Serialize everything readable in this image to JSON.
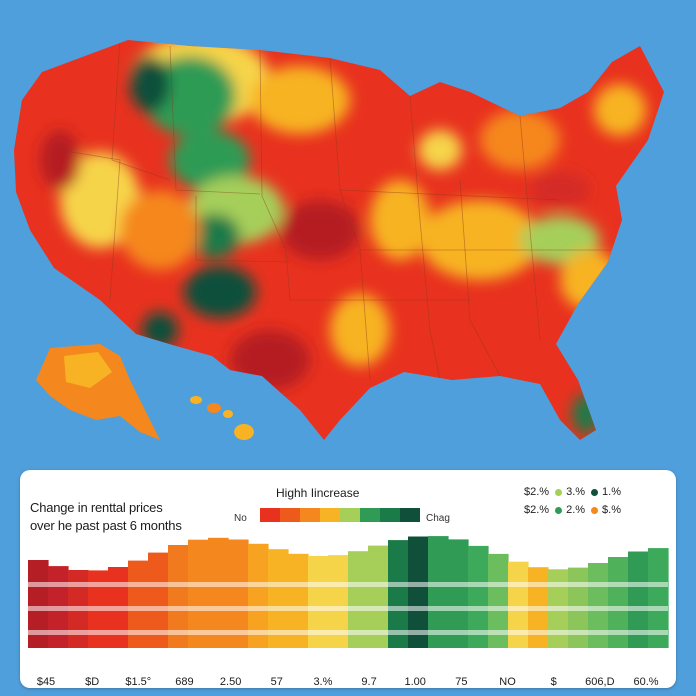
{
  "map": {
    "background": "#4f9fdc",
    "palette": {
      "deep_red": "#b51e24",
      "red": "#e8321f",
      "orange_red": "#ee5a1c",
      "orange": "#f5871f",
      "amber": "#f7b323",
      "yellow": "#f6d44a",
      "light_green": "#a6cf5a",
      "green": "#2f9b55",
      "dark_green": "#10503a"
    }
  },
  "legend": {
    "title_line1": "Change in renttal prices",
    "title_line2": "over he past past 6 months",
    "scale_title": "Highh Iincrease",
    "scale_low_label": "No",
    "scale_high_label": "Chag",
    "scale_colors": [
      "#e8321f",
      "#ee5a1c",
      "#f5871f",
      "#f7b323",
      "#a6cf5a",
      "#2f9b55",
      "#1a7a48",
      "#10503a"
    ],
    "keys_row1": [
      {
        "value": "$2.%",
        "color": ""
      },
      {
        "value": "3.%",
        "color": "#a6cf5a"
      },
      {
        "value": "1.%",
        "color": "#10503a"
      }
    ],
    "keys_row2": [
      {
        "value": "$2.%",
        "color": ""
      },
      {
        "value": "2.%",
        "color": "#2f9b55"
      },
      {
        "value": "$.%",
        "color": "#f5871f"
      }
    ]
  },
  "strip": {
    "bar_colors": [
      "#b51e24",
      "#c4222a",
      "#d42a26",
      "#e8321f",
      "#e8321f",
      "#ee5a1c",
      "#ee5a1c",
      "#f07a1d",
      "#f5871f",
      "#f5871f",
      "#f5871f",
      "#f7a321",
      "#f7b323",
      "#f7b323",
      "#f6d44a",
      "#f6d44a",
      "#a6cf5a",
      "#a6cf5a",
      "#1a7a48",
      "#10503a",
      "#2f9b55",
      "#2f9b55",
      "#3caa5a",
      "#6bbd5d",
      "#f6d44a",
      "#f7b323",
      "#a6cf5a",
      "#8cc65a",
      "#6bbd5d",
      "#4fb25a",
      "#2f9b55",
      "#3caa5a"
    ],
    "axis_labels": [
      "$45",
      "$D",
      "$1.5°",
      "689",
      "2.50",
      "57",
      "3.%",
      "9.7",
      "1.00",
      "75",
      "NO",
      "$",
      "606,D",
      "60.%"
    ]
  }
}
